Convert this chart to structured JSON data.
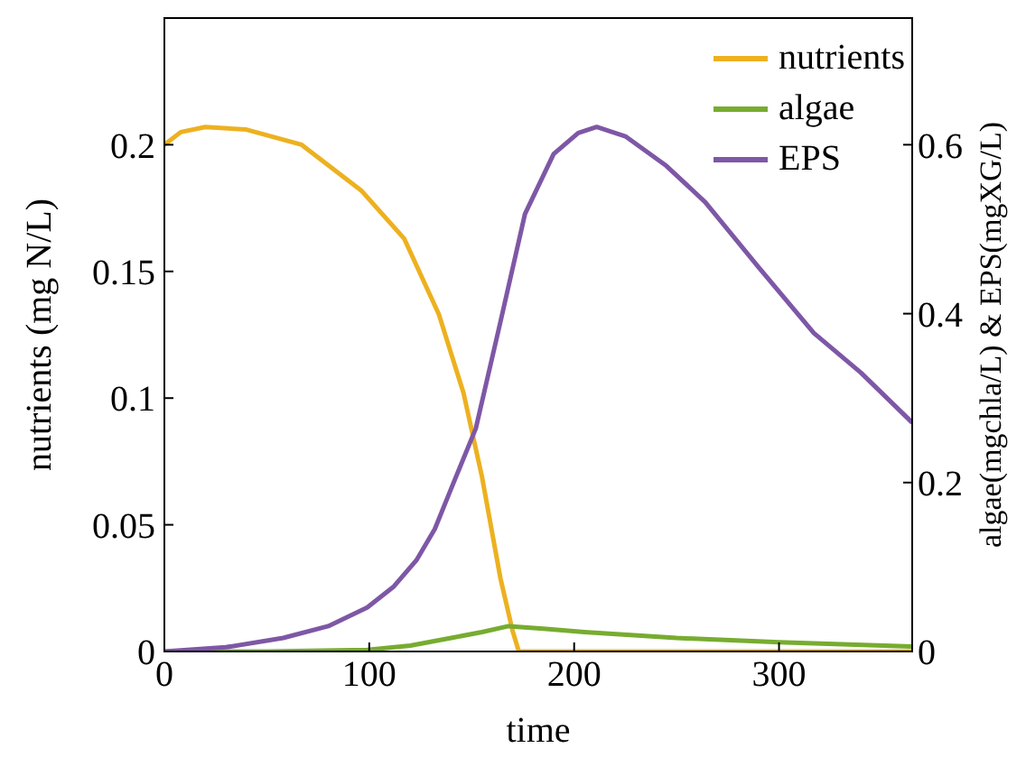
{
  "chart_data": {
    "type": "line",
    "xlabel": "time",
    "ylabel": "nutrients (mg N/L)",
    "y2label": "algae(mgchla/L) & EPS(mgXG/L)",
    "xlim": [
      0,
      365
    ],
    "xticks": [
      0,
      100,
      200,
      300
    ],
    "ylim": [
      0,
      0.25
    ],
    "yticks": [
      0,
      0.05,
      0.1,
      0.15,
      0.2
    ],
    "y2lim": [
      0,
      0.75
    ],
    "y2ticks": [
      0,
      0.2,
      0.4,
      0.6
    ],
    "grid": false,
    "legend": "top right",
    "marker": "none",
    "line_style": "solid",
    "series": [
      {
        "name": "nutrients",
        "color": "#edb120",
        "x": [
          0,
          8,
          20,
          40,
          67,
          96,
          117,
          134,
          146,
          155,
          164,
          170,
          173,
          200,
          250,
          300,
          365
        ],
        "values": [
          0.2,
          0.205,
          0.207,
          0.206,
          0.2,
          0.182,
          0.163,
          0.133,
          0.102,
          0.069,
          0.029,
          0.008,
          0,
          0,
          0,
          0,
          0
        ]
      },
      {
        "name": "algae",
        "color": "#77ac30",
        "axis": "y2",
        "x": [
          0,
          50,
          99,
          120,
          140,
          155,
          168,
          185,
          205,
          250,
          300,
          365
        ],
        "values": [
          0,
          0,
          0.002,
          0.007,
          0.016,
          0.023,
          0.03,
          0.027,
          0.023,
          0.016,
          0.011,
          0.006
        ]
      },
      {
        "name": "EPS",
        "color": "#7e57a6",
        "axis": "y2",
        "x": [
          0,
          30,
          58,
          80,
          99,
          112,
          123,
          132,
          140,
          152,
          164,
          176,
          190,
          202,
          211,
          225,
          245,
          264,
          290,
          317,
          340,
          365
        ],
        "values": [
          0,
          0.005,
          0.016,
          0.03,
          0.052,
          0.077,
          0.108,
          0.145,
          0.193,
          0.264,
          0.39,
          0.518,
          0.589,
          0.614,
          0.621,
          0.61,
          0.575,
          0.532,
          0.455,
          0.377,
          0.33,
          0.271
        ]
      }
    ]
  }
}
